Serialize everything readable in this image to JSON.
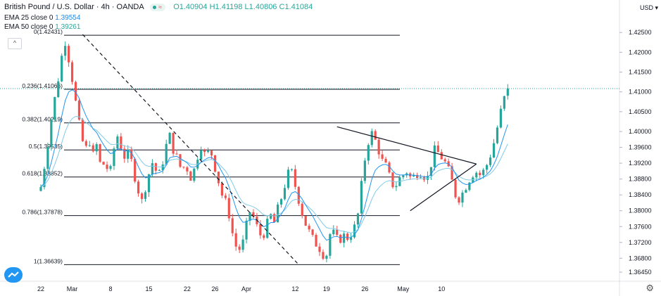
{
  "header": {
    "symbol": "British Pound / U.S. Dollar · 4h · OANDA",
    "ohlc_o": "O1.40904",
    "ohlc_h": "H1.41198",
    "ohlc_l": "L1.40806",
    "ohlc_c": "C1.41084",
    "ema25_label": "EMA 25 close 0",
    "ema25_value": "1.39554",
    "ema50_label": "EMA 50 close 0",
    "ema50_value": "1.39261",
    "collapse_glyph": "^"
  },
  "price_axis": {
    "currency": "USD"
  },
  "colors": {
    "up": "#26a69a",
    "down": "#ef5350",
    "ema25": "#2196f3",
    "ema50": "#80cbe8",
    "fib": "#131722",
    "last_price": "#26a69a"
  },
  "icons": [
    "chart-logo-icon",
    "settings-gear-icon",
    "collapse-legend-icon"
  ],
  "chart_data": {
    "type": "candlestick",
    "pair": "GBPUSD",
    "timeframe": "4h",
    "ylim": [
      1.3622,
      1.4332
    ],
    "y_ticks": [
      "1.42500",
      "1.42000",
      "1.41500",
      "1.41000",
      "1.40500",
      "1.40000",
      "1.39600",
      "1.39200",
      "1.38800",
      "1.38400",
      "1.38000",
      "1.37600",
      "1.37200",
      "1.36800",
      "1.36450"
    ],
    "y_tick_values": [
      1.425,
      1.42,
      1.415,
      1.41,
      1.405,
      1.4,
      1.396,
      1.392,
      1.388,
      1.384,
      1.38,
      1.376,
      1.372,
      1.368,
      1.3645
    ],
    "x_ticks": [
      "22",
      "Mar",
      "8",
      "15",
      "22",
      "26",
      "Apr",
      "12",
      "19",
      "26",
      "May",
      "10"
    ],
    "x_tick_bar_index": [
      0,
      9,
      20,
      31,
      42,
      50,
      59,
      73,
      82,
      93,
      104,
      115
    ],
    "fibonacci": [
      {
        "label": "0(1.42431)",
        "level": 0,
        "price": 1.42431
      },
      {
        "label": "0.236(1.41066)",
        "level": 0.236,
        "price": 1.41066
      },
      {
        "label": "0.382(1.40219)",
        "level": 0.382,
        "price": 1.40219
      },
      {
        "label": "0.5(1.39535)",
        "level": 0.5,
        "price": 1.39535
      },
      {
        "label": "0.618(1.38852)",
        "level": 0.618,
        "price": 1.38852
      },
      {
        "label": "0.786(1.37878)",
        "level": 0.786,
        "price": 1.37878
      },
      {
        "label": "1(1.36639)",
        "level": 1,
        "price": 1.36639
      }
    ],
    "last_price": 1.41084,
    "trendlines": [
      {
        "name": "dashed-decline",
        "style": "dashed",
        "from": [
          12,
          1.4245
        ],
        "to": [
          74,
          1.3664
        ]
      },
      {
        "name": "triangle-upper",
        "style": "solid",
        "from": [
          85,
          1.4012
        ],
        "to": [
          125,
          1.3918
        ]
      },
      {
        "name": "triangle-lower",
        "style": "solid",
        "from": [
          106,
          1.38
        ],
        "to": [
          125,
          1.3918
        ]
      }
    ],
    "closes": [
      1.386,
      1.392,
      1.399,
      1.406,
      1.411,
      1.418,
      1.423,
      1.418,
      1.412,
      1.405,
      1.399,
      1.395,
      1.398,
      1.394,
      1.397,
      1.39,
      1.393,
      1.388,
      1.395,
      1.399,
      1.396,
      1.393,
      1.395,
      1.39,
      1.386,
      1.382,
      1.386,
      1.39,
      1.393,
      1.388,
      1.391,
      1.396,
      1.399,
      1.395,
      1.393,
      1.39,
      1.392,
      1.388,
      1.39,
      1.394,
      1.397,
      1.393,
      1.396,
      1.392,
      1.388,
      1.384,
      1.382,
      1.378,
      1.372,
      1.37,
      1.371,
      1.376,
      1.38,
      1.378,
      1.375,
      1.373,
      1.376,
      1.379,
      1.377,
      1.381,
      1.384,
      1.388,
      1.391,
      1.387,
      1.383,
      1.379,
      1.376,
      1.374,
      1.372,
      1.371,
      1.369,
      1.369,
      1.375,
      1.374,
      1.372,
      1.374,
      1.373,
      1.374,
      1.376,
      1.38,
      1.39,
      1.396,
      1.4,
      1.398,
      1.395,
      1.392,
      1.391,
      1.387,
      1.386,
      1.388,
      1.389,
      1.39,
      1.388,
      1.389,
      1.39,
      1.389,
      1.388,
      1.392,
      1.396,
      1.394,
      1.393,
      1.391,
      1.388,
      1.384,
      1.383,
      1.385,
      1.387,
      1.389,
      1.39,
      1.389,
      1.39,
      1.392,
      1.395,
      1.399,
      1.404,
      1.408,
      1.4108
    ]
  }
}
